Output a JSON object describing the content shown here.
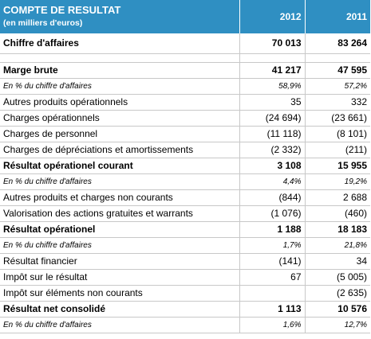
{
  "header": {
    "title": "COMPTE DE RESULTAT",
    "subtitle": "(en milliers d'euros)",
    "year1": "2012",
    "year2": "2011"
  },
  "rows": [
    {
      "label": "Chiffre d'affaires",
      "v2012": "70 013",
      "v2011": "83 264"
    },
    {
      "label": "Marge brute",
      "v2012": "41 217",
      "v2011": "47 595"
    },
    {
      "label": "En % du chiffre d'affaires",
      "v2012": "58,9%",
      "v2011": "57,2%"
    },
    {
      "label": "Autres produits opérationnels",
      "v2012": "35",
      "v2011": "332"
    },
    {
      "label": "Charges opérationnels",
      "v2012": "(24 694)",
      "v2011": "(23 661)"
    },
    {
      "label": "Charges de personnel",
      "v2012": "(11 118)",
      "v2011": "(8 101)"
    },
    {
      "label": "Charges de dépréciations et amortissements",
      "v2012": "(2 332)",
      "v2011": "(211)"
    },
    {
      "label": "Résultat opérationel courant",
      "v2012": "3 108",
      "v2011": "15 955"
    },
    {
      "label": "En % du chiffre d'affaires",
      "v2012": "4,4%",
      "v2011": "19,2%"
    },
    {
      "label": "Autres produits et charges non courants",
      "v2012": "(844)",
      "v2011": "2 688"
    },
    {
      "label": "Valorisation des actions gratuites et warrants",
      "v2012": "(1 076)",
      "v2011": "(460)"
    },
    {
      "label": "Résultat opérationel",
      "v2012": "1 188",
      "v2011": "18 183"
    },
    {
      "label": "En % du chiffre d'affaires",
      "v2012": "1,7%",
      "v2011": "21,8%"
    },
    {
      "label": "Résultat financier",
      "v2012": "(141)",
      "v2011": "34"
    },
    {
      "label": "Impôt sur le résultat",
      "v2012": "67",
      "v2011": "(5 005)"
    },
    {
      "label": "Impôt sur éléments non courants",
      "v2012": "",
      "v2011": "(2 635)"
    },
    {
      "label": "Résultat net consolidé",
      "v2012": "1 113",
      "v2011": "10 576"
    },
    {
      "label": "En % du chiffre d'affaires",
      "v2012": "1,6%",
      "v2011": "12,7%"
    }
  ]
}
